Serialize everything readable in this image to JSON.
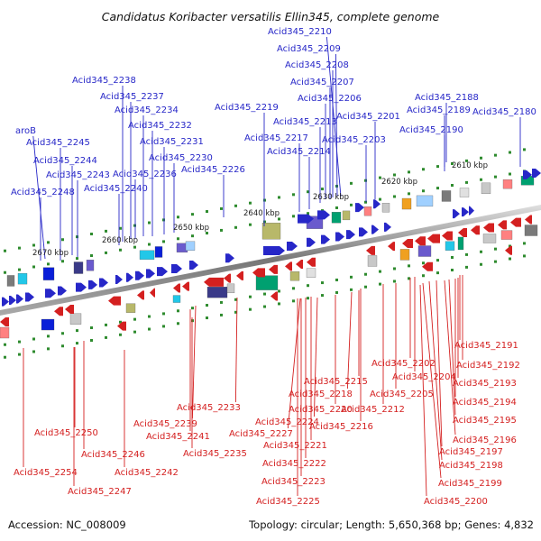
{
  "title": "Candidatus Koribacter versatilis Ellin345, complete genome",
  "footer": {
    "accession": "Accession: NC_008009",
    "summary": "Topology: circular; Length: 5,650,368 bp; Genes: 4,832"
  },
  "colors": {
    "forward_strand": "#2727c8",
    "reverse_strand": "#d42020",
    "track_dots": "#2e8b2e",
    "backbone": "#777777"
  },
  "position_labels": [
    "2610 kbp",
    "2620 kbp",
    "2630 kbp",
    "2640 kbp",
    "2650 kbp",
    "2660 kbp",
    "2670 kbp"
  ],
  "forward_genes": [
    "Acid345_2210",
    "Acid345_2209",
    "Acid345_2208",
    "Acid345_2207",
    "Acid345_2206",
    "Acid345_2238",
    "Acid345_2237",
    "Acid345_2234",
    "Acid345_2232",
    "Acid345_2231",
    "Acid345_2230",
    "Acid345_2226",
    "Acid345_2219",
    "Acid345_2213",
    "Acid345_2217",
    "Acid345_2214",
    "Acid345_2203",
    "Acid345_2201",
    "Acid345_2188",
    "Acid345_2189",
    "Acid345_2180",
    "Acid345_2190",
    "aroB",
    "Acid345_2245",
    "Acid345_2244",
    "Acid345_2243",
    "Acid345_2236",
    "Acid345_2240",
    "Acid345_2248"
  ],
  "reverse_genes": [
    "Acid345_2191",
    "Acid345_2192",
    "Acid345_2202",
    "Acid345_2204",
    "Acid345_2193",
    "Acid345_2215",
    "Acid345_2205",
    "Acid345_2218",
    "Acid345_2194",
    "Acid345_2220",
    "Acid345_2212",
    "Acid345_2233",
    "Acid345_2224",
    "Acid345_2195",
    "Acid345_2239",
    "Acid345_2216",
    "Acid345_2227",
    "Acid345_2241",
    "Acid345_2196",
    "Acid345_2250",
    "Acid345_2221",
    "Acid345_2197",
    "Acid345_2246",
    "Acid345_2235",
    "Acid345_2222",
    "Acid345_2198",
    "Acid345_2254",
    "Acid345_2242",
    "Acid345_2223",
    "Acid345_2199",
    "Acid345_2247",
    "Acid345_2225",
    "Acid345_2200"
  ]
}
